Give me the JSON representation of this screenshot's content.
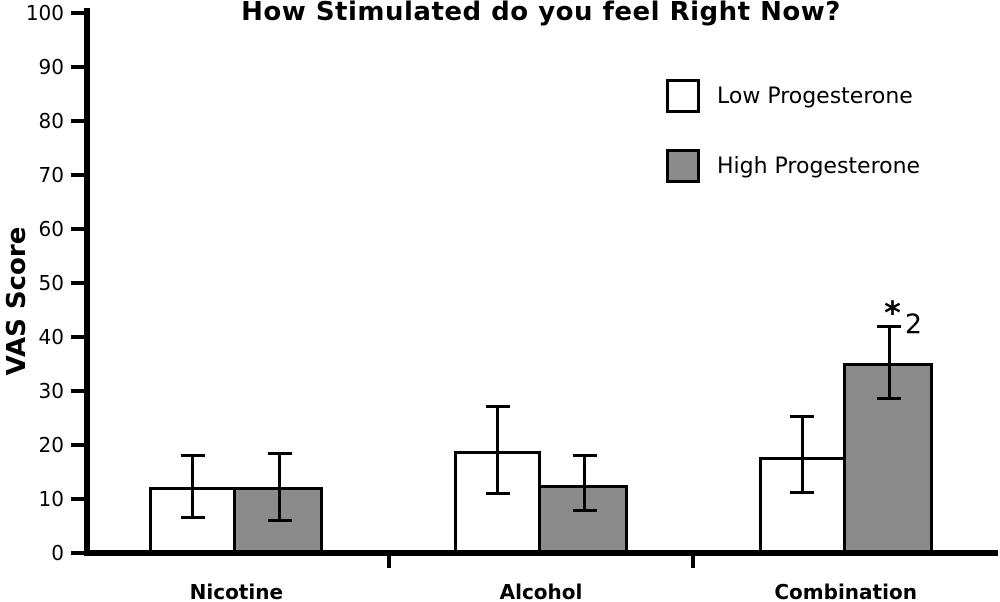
{
  "figure": {
    "background": "#ffffff"
  },
  "chart_data": {
    "type": "bar",
    "title": "How Stimulated do you feel Right Now?",
    "ylabel": "VAS Score",
    "xlabel": "",
    "ylim": [
      0,
      100
    ],
    "yticks": [
      0,
      10,
      20,
      30,
      40,
      50,
      60,
      70,
      80,
      90,
      100
    ],
    "grid": false,
    "legend_position": "top-right",
    "categories": [
      "Nicotine",
      "Alcohol",
      "Combination"
    ],
    "series": [
      {
        "name": "Low Progesterone",
        "fill": "#ffffff",
        "border": "#000000",
        "values": [
          12.3,
          18.8,
          17.7
        ],
        "error_upper": [
          18.1,
          27.2,
          25.3
        ],
        "error_lower": [
          6.5,
          11.0,
          11.2
        ]
      },
      {
        "name": "High Progesterone",
        "fill": "#8b8b8b",
        "border": "#000000",
        "values": [
          12.3,
          12.6,
          35.2
        ],
        "error_upper": [
          18.6,
          18.1,
          42.1
        ],
        "error_lower": [
          6.0,
          7.8,
          28.6
        ]
      }
    ],
    "annotation": {
      "star": "*",
      "text": "2",
      "category": "Combination",
      "series": "High Progesterone"
    },
    "axis_color": "#000000"
  }
}
